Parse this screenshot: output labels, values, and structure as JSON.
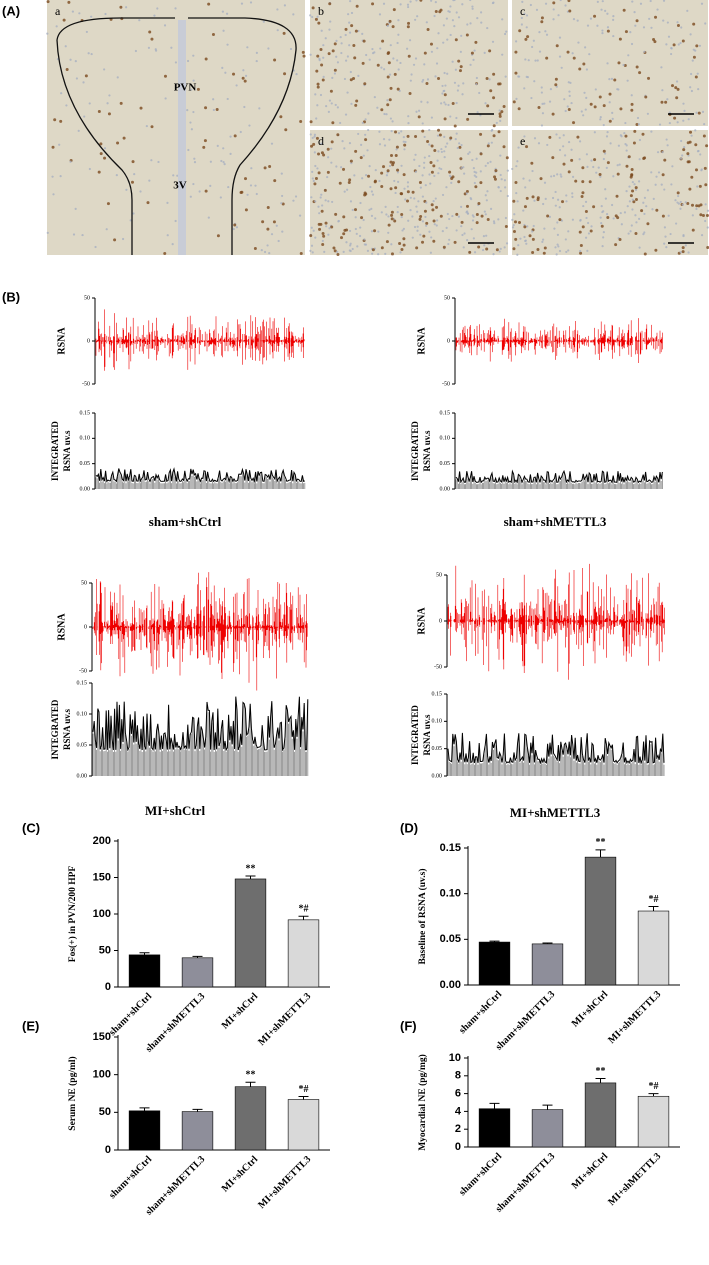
{
  "panel_a": {
    "label": "(A)",
    "images": [
      "a",
      "b",
      "c",
      "d",
      "e"
    ],
    "pvn": "PVN",
    "v3": "3V"
  },
  "panel_b": {
    "label": "(B)",
    "rsna_label": "RSNA",
    "integrated_label": [
      "INTEGRATED",
      "RSNA uv.s"
    ],
    "rsna_ylim": [
      -50,
      50
    ],
    "rsna_yticks": [
      50,
      0,
      -50
    ],
    "integrated_ylim": [
      0,
      0.15
    ],
    "integrated_yticks": [
      {
        "value": 0.15,
        "label": "0.15"
      },
      {
        "value": 0.1,
        "label": "0.10"
      },
      {
        "value": 0.05,
        "label": "0.05"
      },
      {
        "value": 0,
        "label": "0.00"
      }
    ],
    "groups": [
      "sham+shCtrl",
      "sham+shMETTL3",
      "MI+shCtrl",
      "MI+shMETTL3"
    ]
  },
  "chart_data": [
    {
      "type": "bar",
      "panel_label": "(C)",
      "ylabel": "Fos(+) in PVN/200 HPF",
      "categories": [
        "sham+shCtrl",
        "sham+shMETTL3",
        "MI+shCtrl",
        "MI+shMETTL3"
      ],
      "values": [
        44,
        40,
        148,
        92
      ],
      "errors": [
        3,
        2,
        4,
        5
      ],
      "annotations": [
        null,
        null,
        "**",
        "*#"
      ],
      "colors": [
        "#000000",
        "#8e8e9a",
        "#6e6e6e",
        "#d9d9d9"
      ],
      "ylim": [
        0,
        200
      ],
      "yticks": [
        0,
        50,
        100,
        150,
        200
      ]
    },
    {
      "type": "bar",
      "panel_label": "(D)",
      "ylabel": "Baseline of RSNA (uv.s)",
      "categories": [
        "sham+shCtrl",
        "sham+shMETTL3",
        "MI+shCtrl",
        "MI+shMETTL3"
      ],
      "values": [
        0.047,
        0.045,
        0.14,
        0.081
      ],
      "errors": [
        0.001,
        0.001,
        0.008,
        0.005
      ],
      "annotations": [
        null,
        null,
        "**",
        "*#"
      ],
      "colors": [
        "#000000",
        "#8e8e9a",
        "#6e6e6e",
        "#d9d9d9"
      ],
      "ylim": [
        0,
        0.15
      ],
      "yticks": [
        {
          "value": 0,
          "label": "0.00"
        },
        {
          "value": 0.05,
          "label": "0.05"
        },
        {
          "value": 0.1,
          "label": "0.10"
        },
        {
          "value": 0.15,
          "label": "0.15"
        }
      ]
    },
    {
      "type": "bar",
      "panel_label": "(E)",
      "ylabel": "Serum NE (pg/ml)",
      "categories": [
        "sham+shCtrl",
        "sham+shMETTL3",
        "MI+shCtrl",
        "MI+shMETTL3"
      ],
      "values": [
        52,
        51,
        84,
        67
      ],
      "errors": [
        4,
        3,
        6,
        4
      ],
      "annotations": [
        null,
        null,
        "**",
        "*#"
      ],
      "colors": [
        "#000000",
        "#8e8e9a",
        "#6e6e6e",
        "#d9d9d9"
      ],
      "ylim": [
        0,
        150
      ],
      "yticks": [
        0,
        50,
        100,
        150
      ]
    },
    {
      "type": "bar",
      "panel_label": "(F)",
      "ylabel": "Myocardial NE (pg/mg)",
      "categories": [
        "sham+shCtrl",
        "sham+shMETTL3",
        "MI+shCtrl",
        "MI+shMETTL3"
      ],
      "values": [
        4.3,
        4.2,
        7.2,
        5.7
      ],
      "errors": [
        0.6,
        0.5,
        0.5,
        0.3
      ],
      "annotations": [
        null,
        null,
        "**",
        "*#"
      ],
      "colors": [
        "#000000",
        "#8e8e9a",
        "#6e6e6e",
        "#d9d9d9"
      ],
      "ylim": [
        0,
        10
      ],
      "yticks": [
        0,
        2,
        4,
        6,
        8,
        10
      ]
    }
  ]
}
